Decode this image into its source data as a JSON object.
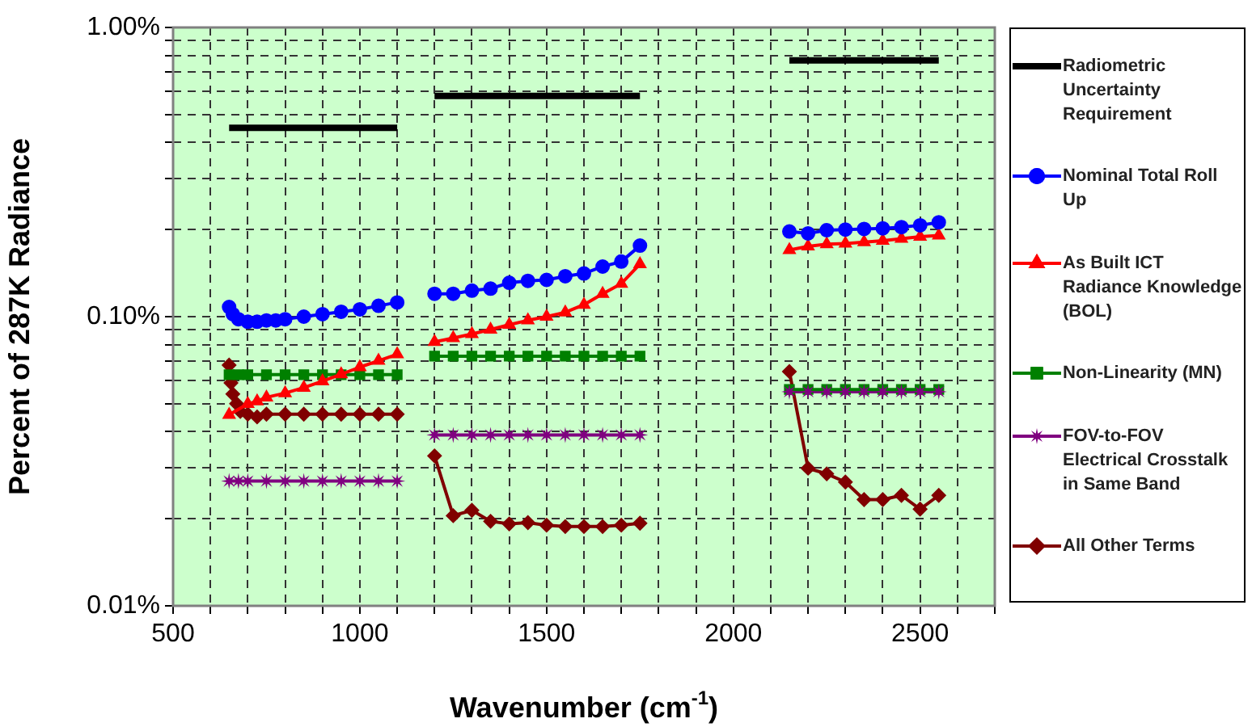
{
  "chart_data": {
    "type": "line",
    "xlabel": "Wavenumber (cm$^{-1}$)",
    "ylabel": "Percent of 287K Radiance",
    "xlim": [
      500,
      2700
    ],
    "xticks": [
      500,
      {
        "value": 600,
        "label": null
      },
      {
        "value": 700,
        "label": null
      },
      {
        "value": 800,
        "label": null
      },
      {
        "value": 900,
        "label": null
      },
      1000,
      {
        "value": 1100,
        "label": null
      },
      {
        "value": 1200,
        "label": null
      },
      {
        "value": 1300,
        "label": null
      },
      {
        "value": 1400,
        "label": null
      },
      1500,
      {
        "value": 1600,
        "label": null
      },
      {
        "value": 1700,
        "label": null
      },
      {
        "value": 1800,
        "label": null
      },
      {
        "value": 1900,
        "label": null
      },
      2000,
      {
        "value": 2100,
        "label": null
      },
      {
        "value": 2200,
        "label": null
      },
      {
        "value": 2300,
        "label": null
      },
      {
        "value": 2400,
        "label": null
      },
      2500,
      {
        "value": 2600,
        "label": null
      },
      {
        "value": 2700,
        "label": null
      }
    ],
    "ylim": [
      0.01,
      1
    ],
    "log": "y",
    "yticks": [
      {
        "value": 0.01,
        "label": "0.01%"
      },
      {
        "value": 0.02,
        "label": null
      },
      {
        "value": 0.03,
        "label": null
      },
      {
        "value": 0.04,
        "label": null
      },
      {
        "value": 0.05,
        "label": null
      },
      {
        "value": 0.06,
        "label": null
      },
      {
        "value": 0.07,
        "label": null
      },
      {
        "value": 0.08,
        "label": null
      },
      {
        "value": 0.09,
        "label": null
      },
      {
        "value": 0.1,
        "label": "0.10%"
      },
      {
        "value": 0.2,
        "label": null
      },
      {
        "value": 0.3,
        "label": null
      },
      {
        "value": 0.4,
        "label": null
      },
      {
        "value": 0.5,
        "label": null
      },
      {
        "value": 0.6,
        "label": null
      },
      {
        "value": 0.7,
        "label": null
      },
      {
        "value": 0.8,
        "label": null
      },
      {
        "value": 0.9,
        "label": null
      },
      {
        "value": 1,
        "label": "1.00%"
      }
    ],
    "grid": true,
    "legend": "right",
    "line_style": "solid",
    "series": [
      {
        "name": "Radiometric Uncertainty Requirement",
        "color": "#000000",
        "marker": "none",
        "x": [
          650,
          1100,
          1150,
          1200,
          1750,
          1950,
          2150,
          2550
        ],
        "values": [
          0.45,
          0.45,
          null,
          0.58,
          0.58,
          null,
          0.77,
          0.77
        ]
      },
      {
        "name": "Nominal Total Roll Up",
        "color": "#0000ff",
        "marker": "circle",
        "x": [
          650,
          660,
          675,
          700,
          725,
          750,
          775,
          800,
          850,
          900,
          950,
          1000,
          1050,
          1100,
          1150,
          1200,
          1250,
          1300,
          1350,
          1400,
          1450,
          1500,
          1550,
          1600,
          1650,
          1700,
          1750,
          1950,
          2150,
          2200,
          2250,
          2300,
          2350,
          2400,
          2450,
          2500,
          2550
        ],
        "values": [
          0.108,
          0.102,
          0.098,
          0.096,
          0.096,
          0.097,
          0.097,
          0.098,
          0.1,
          0.102,
          0.104,
          0.106,
          0.109,
          0.112,
          null,
          0.12,
          0.12,
          0.123,
          0.125,
          0.131,
          0.133,
          0.134,
          0.138,
          0.141,
          0.149,
          0.155,
          0.176,
          null,
          0.197,
          0.194,
          0.199,
          0.2,
          0.201,
          0.202,
          0.204,
          0.207,
          0.212
        ]
      },
      {
        "name": "As Built ICT Radiance Knowledge (BOL)",
        "color": "#ff0000",
        "marker": "triangle",
        "x": [
          650,
          700,
          725,
          750,
          800,
          850,
          900,
          950,
          1000,
          1050,
          1100,
          1150,
          1200,
          1250,
          1300,
          1350,
          1400,
          1450,
          1500,
          1550,
          1600,
          1650,
          1700,
          1750,
          1950,
          2150,
          2200,
          2250,
          2300,
          2350,
          2400,
          2450,
          2500,
          2550
        ],
        "values": [
          0.0458,
          0.0499,
          0.051,
          0.0526,
          0.0544,
          0.0568,
          0.0598,
          0.0632,
          0.0669,
          0.0704,
          0.0741,
          null,
          0.0818,
          0.0843,
          0.0871,
          0.0902,
          0.0938,
          0.0971,
          0.1,
          0.1035,
          0.11,
          0.12,
          0.13,
          0.152,
          null,
          0.17,
          0.175,
          0.178,
          0.179,
          0.181,
          0.183,
          0.186,
          0.189,
          0.191
        ]
      },
      {
        "name": "Non-Linearity (MN)",
        "color": "#008000",
        "marker": "square",
        "x": [
          650,
          675,
          700,
          750,
          800,
          850,
          900,
          950,
          1000,
          1050,
          1100,
          1150,
          1200,
          1250,
          1300,
          1350,
          1400,
          1450,
          1500,
          1550,
          1600,
          1650,
          1700,
          1750,
          1950,
          2150,
          2200,
          2250,
          2300,
          2350,
          2400,
          2450,
          2500,
          2550
        ],
        "values": [
          0.063,
          0.063,
          0.063,
          0.063,
          0.063,
          0.063,
          0.063,
          0.063,
          0.063,
          0.063,
          0.063,
          null,
          0.073,
          0.073,
          0.073,
          0.073,
          0.073,
          0.073,
          0.073,
          0.073,
          0.073,
          0.073,
          0.073,
          0.073,
          null,
          0.056,
          0.056,
          0.056,
          0.056,
          0.056,
          0.056,
          0.056,
          0.056,
          0.056
        ]
      },
      {
        "name": "FOV-to-FOV Electrical Crosstalk in Same Band",
        "color": "#800080",
        "marker": "star",
        "x": [
          650,
          675,
          700,
          750,
          800,
          850,
          900,
          950,
          1000,
          1050,
          1100,
          1150,
          1200,
          1250,
          1300,
          1350,
          1400,
          1450,
          1500,
          1550,
          1600,
          1650,
          1700,
          1750,
          1950,
          2150,
          2200,
          2250,
          2300,
          2350,
          2400,
          2450,
          2500,
          2550
        ],
        "values": [
          0.027,
          0.027,
          0.027,
          0.027,
          0.027,
          0.027,
          0.027,
          0.027,
          0.027,
          0.027,
          0.027,
          null,
          0.039,
          0.039,
          0.039,
          0.039,
          0.039,
          0.039,
          0.039,
          0.039,
          0.039,
          0.039,
          0.039,
          0.039,
          null,
          0.055,
          0.055,
          0.055,
          0.055,
          0.055,
          0.055,
          0.055,
          0.055,
          0.055
        ]
      },
      {
        "name": "All Other Terms",
        "color": "#800000",
        "marker": "diamond",
        "x": [
          650,
          655,
          660,
          670,
          680,
          700,
          725,
          750,
          800,
          850,
          900,
          950,
          1000,
          1050,
          1100,
          1150,
          1200,
          1250,
          1300,
          1350,
          1400,
          1450,
          1500,
          1550,
          1600,
          1650,
          1700,
          1750,
          1950,
          2150,
          2200,
          2250,
          2300,
          2350,
          2400,
          2450,
          2500,
          2550
        ],
        "values": [
          0.068,
          0.059,
          0.054,
          0.05,
          0.047,
          0.046,
          0.045,
          0.046,
          0.046,
          0.046,
          0.046,
          0.046,
          0.046,
          0.046,
          0.046,
          null,
          0.033,
          0.0205,
          0.0214,
          0.0196,
          0.0192,
          0.0194,
          0.019,
          0.0188,
          0.0188,
          0.0188,
          0.019,
          0.0193,
          null,
          0.0646,
          0.0299,
          0.0286,
          0.0268,
          0.0233,
          0.0233,
          0.0241,
          0.0216,
          0.0241
        ]
      }
    ]
  }
}
